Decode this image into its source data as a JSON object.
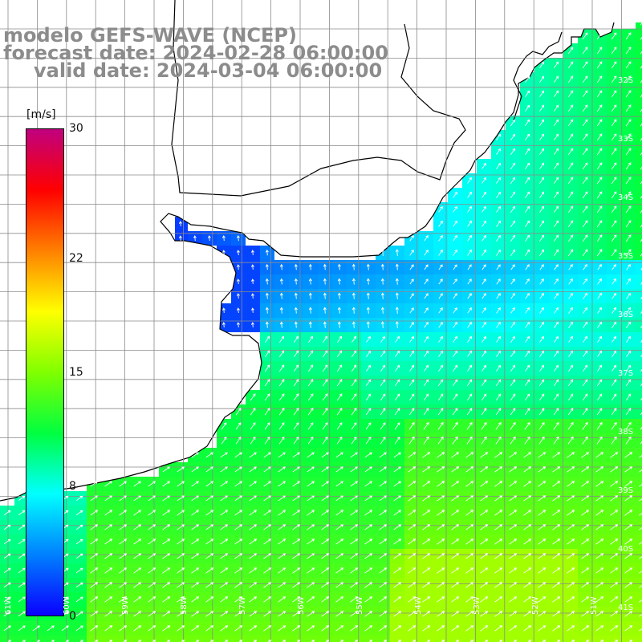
{
  "title": {
    "line1": "modelo GEFS-WAVE (NCEP)",
    "line2": "forecast date: 2024-02-28 06:00:00",
    "line3": "valid date: 2024-03-04 06:00:00"
  },
  "colorbar": {
    "units": "[m/s]",
    "range": [
      0,
      30
    ],
    "ticks": [
      {
        "value": 0,
        "label": "0"
      },
      {
        "value": 8,
        "label": "8"
      },
      {
        "value": 15,
        "label": "15"
      },
      {
        "value": 22,
        "label": "22"
      },
      {
        "value": 30,
        "label": "30"
      }
    ],
    "stops": [
      "#0a00ff",
      "#0080ff",
      "#00ffff",
      "#00ff40",
      "#80ff00",
      "#ffff00",
      "#ff8000",
      "#ff0000",
      "#c0007f"
    ]
  },
  "map": {
    "variable": "wind speed and direction",
    "land_color": "#ffffff",
    "grid_color": "#9a9a9a",
    "coast_color": "#000000",
    "lat_labels": [
      "32S",
      "33S",
      "34S",
      "35S",
      "36S",
      "37S",
      "38S",
      "39S",
      "40S",
      "41S"
    ],
    "lon_labels": [
      "61W",
      "60W",
      "59W",
      "58W",
      "57W",
      "56W",
      "55W",
      "54W",
      "53W",
      "52W",
      "51W"
    ]
  }
}
